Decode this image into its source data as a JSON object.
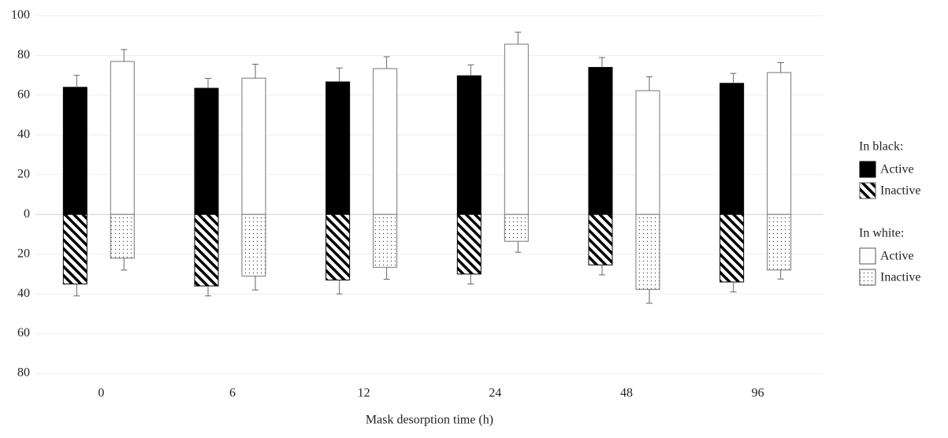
{
  "chart_data": {
    "type": "diverging_bar",
    "x_label": "Mask desorption time (h)",
    "categories": [
      "0",
      "6",
      "12",
      "24",
      "48",
      "96"
    ],
    "ylim": [
      -80,
      100
    ],
    "yticks": [
      {
        "value": -80,
        "label": "80"
      },
      {
        "value": -60,
        "label": "60"
      },
      {
        "value": -40,
        "label": "40"
      },
      {
        "value": -20,
        "label": "20"
      },
      0,
      20,
      40,
      60,
      80,
      100
    ],
    "grid": true,
    "legend_position": "right",
    "groups": [
      {
        "title": "In black:",
        "series": [
          {
            "name": "Active",
            "pattern": "solid",
            "values": [
              64,
              63.5,
              66.7,
              69.8,
              74,
              66
            ],
            "errors": [
              6,
              5,
              7,
              5.5,
              5,
              5
            ]
          },
          {
            "name": "Inactive",
            "pattern": "hatch",
            "values": [
              -35,
              -36,
              -33,
              -30,
              -25.4,
              -34
            ],
            "errors": [
              6,
              5,
              7,
              5,
              5,
              5
            ]
          }
        ]
      },
      {
        "title": "In white:",
        "series": [
          {
            "name": "Active",
            "pattern": "white",
            "values": [
              77,
              68.6,
              73.4,
              85.7,
              62.3,
              71.4
            ],
            "errors": [
              6,
              7,
              6,
              6,
              7,
              5
            ]
          },
          {
            "name": "Inactive",
            "pattern": "dots",
            "values": [
              -22,
              -31,
              -26.6,
              -13.5,
              -37.7,
              -28
            ],
            "errors": [
              6,
              7,
              6,
              5.5,
              7,
              4.5
            ]
          }
        ]
      }
    ]
  }
}
